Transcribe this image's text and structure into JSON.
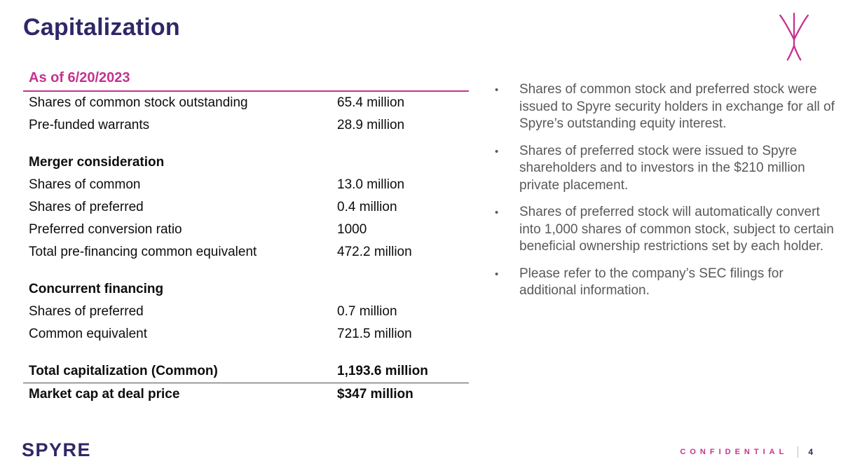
{
  "slide": {
    "title": "Capitalization",
    "brand": "SPYRE",
    "confidential": "CONFIDENTIAL",
    "page_number": "4"
  },
  "colors": {
    "navy": "#2E2867",
    "magenta": "#C5328F",
    "gray": "#595959"
  },
  "table": {
    "header": "As of 6/20/2023",
    "rows": [
      {
        "label": "Shares of common stock outstanding",
        "value": "65.4 million",
        "style": "normal"
      },
      {
        "label": "Pre-funded warrants",
        "value": "28.9 million",
        "style": "normal"
      },
      {
        "label": "",
        "value": "",
        "style": "spacer"
      },
      {
        "label": "Merger consideration",
        "value": "",
        "style": "section"
      },
      {
        "label": "Shares of common",
        "value": "13.0 million",
        "style": "normal"
      },
      {
        "label": "Shares of preferred",
        "value": "0.4 million",
        "style": "normal"
      },
      {
        "label": "Preferred conversion ratio",
        "value": "1000",
        "style": "normal"
      },
      {
        "label": "Total pre-financing common equivalent",
        "value": "472.2 million",
        "style": "normal"
      },
      {
        "label": "",
        "value": "",
        "style": "spacer"
      },
      {
        "label": "Concurrent financing",
        "value": "",
        "style": "section"
      },
      {
        "label": "Shares of preferred",
        "value": "0.7 million",
        "style": "normal"
      },
      {
        "label": "Common equivalent",
        "value": "721.5 million",
        "style": "normal"
      },
      {
        "label": "",
        "value": "",
        "style": "spacer"
      },
      {
        "label": "Total capitalization (Common)",
        "value": "1,193.6 million",
        "style": "total-rule"
      },
      {
        "label": "Market cap at deal price",
        "value": "$347 million",
        "style": "total"
      }
    ]
  },
  "bullets": [
    "Shares of common stock and preferred stock were issued to Spyre security holders in exchange for all of Spyre’s outstanding equity interest.",
    "Shares of preferred stock were issued to Spyre shareholders and to investors in the $210 million private placement.",
    "Shares of preferred stock will automatically convert into 1,000 shares of common stock, subject to certain beneficial ownership restrictions set by each holder.",
    "Please refer to the company’s SEC filings for additional information."
  ]
}
